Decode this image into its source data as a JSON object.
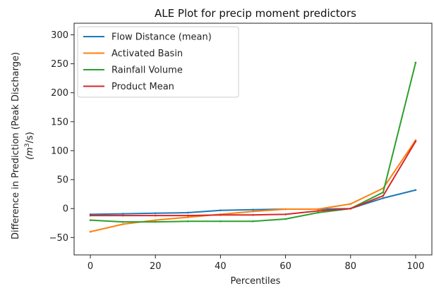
{
  "chart_data": {
    "type": "line",
    "title": "ALE Plot for precip moment predictors",
    "xlabel": "Percentiles",
    "ylabel_line1": "Difference in Prediction (Peak Discharge)",
    "ylabel_line2_base": "(m",
    "ylabel_line2_sup": "3",
    "ylabel_line2_tail": "/s)",
    "xlim": [
      -5,
      105
    ],
    "ylim": [
      -80,
      320
    ],
    "xticks": [
      0,
      20,
      40,
      60,
      80,
      100
    ],
    "yticks": [
      -50,
      0,
      50,
      100,
      150,
      200,
      250,
      300
    ],
    "x": [
      0,
      10,
      20,
      30,
      40,
      50,
      60,
      70,
      80,
      90,
      100
    ],
    "series": [
      {
        "name": "Flow Distance (mean)",
        "color": "#1f77b4",
        "values": [
          -10,
          -9,
          -8,
          -7,
          -3,
          -2,
          -1,
          -1,
          0,
          18,
          32
        ]
      },
      {
        "name": "Activated Basin",
        "color": "#ff7f0e",
        "values": [
          -40,
          -27,
          -20,
          -15,
          -10,
          -5,
          -1,
          -1,
          8,
          35,
          118
        ]
      },
      {
        "name": "Rainfall Volume",
        "color": "#2ca02c",
        "values": [
          -20,
          -23,
          -23,
          -22,
          -22,
          -22,
          -18,
          -7,
          0,
          28,
          252
        ]
      },
      {
        "name": "Product Mean",
        "color": "#d62728",
        "values": [
          -12,
          -12,
          -12,
          -12,
          -11,
          -11,
          -10,
          -4,
          0,
          22,
          116
        ]
      }
    ],
    "grid": false,
    "legend_position": "top-left"
  }
}
